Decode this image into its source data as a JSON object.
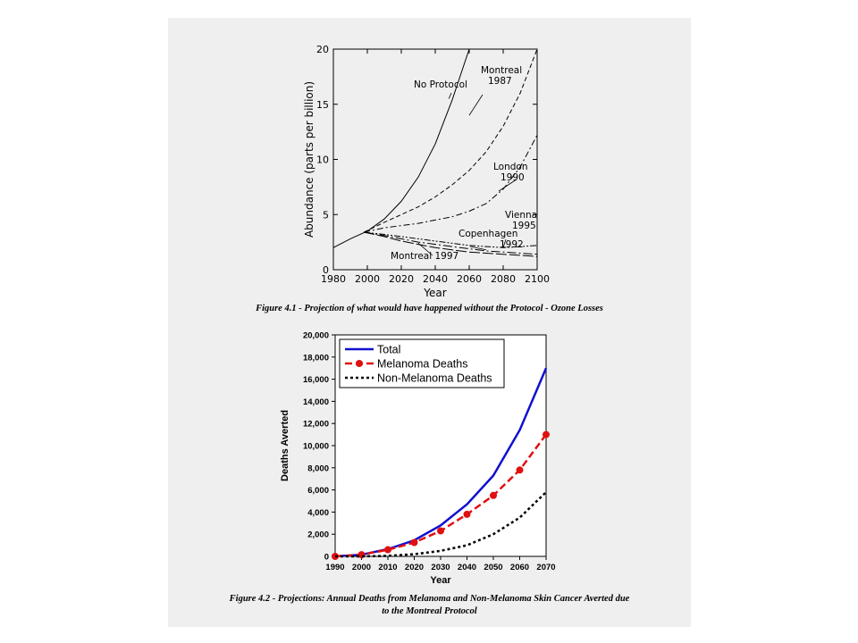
{
  "fig1": {
    "caption": "Figure 4.1 - Projection of what would have happened without the Protocol - Ozone Losses"
  },
  "fig2": {
    "caption_line1": "Figure 4.2 - Projections: Annual Deaths from Melanoma and Non-Melanoma Skin Cancer Averted due",
    "caption_line2": "to the Montreal Protocol"
  },
  "chart_data": [
    {
      "type": "line",
      "xlabel": "Year",
      "ylabel": "Abundance (parts per billion)",
      "xlim": [
        1980,
        2100
      ],
      "ylim": [
        0,
        20
      ],
      "xticks": [
        1980,
        2000,
        2020,
        2040,
        2060,
        2080,
        2100
      ],
      "yticks": [
        0,
        5,
        10,
        15,
        20
      ],
      "grid": false,
      "series": [
        {
          "name": "No Protocol",
          "style": "solid",
          "x": [
            1980,
            1990,
            2000,
            2010,
            2020,
            2030,
            2040,
            2050,
            2060
          ],
          "y": [
            2.0,
            2.8,
            3.5,
            4.6,
            6.2,
            8.4,
            11.4,
            15.4,
            20.0
          ]
        },
        {
          "name": "Montreal 1987",
          "style": "dash",
          "x": [
            1998,
            2010,
            2020,
            2030,
            2040,
            2050,
            2060,
            2070,
            2080,
            2090,
            2100
          ],
          "y": [
            3.4,
            4.3,
            5.0,
            5.7,
            6.6,
            7.7,
            9.0,
            10.7,
            13.0,
            16.0,
            20.0
          ]
        },
        {
          "name": "London 1990",
          "style": "dashdot",
          "x": [
            1998,
            2010,
            2020,
            2030,
            2040,
            2050,
            2060,
            2070,
            2080,
            2090,
            2100
          ],
          "y": [
            3.4,
            3.8,
            4.0,
            4.2,
            4.5,
            4.8,
            5.3,
            6.0,
            7.3,
            9.3,
            12.2
          ]
        },
        {
          "name": "Vienna 1995",
          "style": "dashdotdot",
          "x": [
            1998,
            2010,
            2020,
            2030,
            2040,
            2050,
            2060,
            2070,
            2080,
            2090,
            2100
          ],
          "y": [
            3.4,
            3.2,
            3.0,
            2.8,
            2.6,
            2.4,
            2.2,
            2.1,
            2.0,
            2.1,
            2.2
          ]
        },
        {
          "name": "Copenhagen 1992",
          "style": "longdashdot",
          "x": [
            1998,
            2010,
            2020,
            2030,
            2040,
            2050,
            2060,
            2070,
            2080,
            2090,
            2100
          ],
          "y": [
            3.4,
            3.1,
            2.8,
            2.5,
            2.3,
            2.1,
            1.9,
            1.7,
            1.6,
            1.5,
            1.4
          ]
        },
        {
          "name": "Montreal 1997",
          "style": "longdash",
          "x": [
            1998,
            2010,
            2020,
            2030,
            2040,
            2050,
            2060,
            2070,
            2080,
            2090,
            2100
          ],
          "y": [
            3.4,
            3.0,
            2.6,
            2.3,
            2.0,
            1.8,
            1.6,
            1.5,
            1.4,
            1.3,
            1.2
          ]
        }
      ]
    },
    {
      "type": "line",
      "xlabel": "Year",
      "ylabel": "Deaths Averted",
      "xlim": [
        1990,
        2070
      ],
      "ylim": [
        0,
        20000
      ],
      "xticks": [
        1990,
        2000,
        2010,
        2020,
        2030,
        2040,
        2050,
        2060,
        2070
      ],
      "yticks": [
        0,
        2000,
        4000,
        6000,
        8000,
        10000,
        12000,
        14000,
        16000,
        18000,
        20000
      ],
      "ytick_labels": [
        "0",
        "2,000",
        "4,000",
        "6,000",
        "8,000",
        "10,000",
        "12,000",
        "14,000",
        "16,000",
        "18,000",
        "20,000"
      ],
      "grid": false,
      "legend": "top-left",
      "series": [
        {
          "name": "Total",
          "color": "#1010d0",
          "x": [
            1990,
            2000,
            2010,
            2020,
            2030,
            2040,
            2050,
            2060,
            2070
          ],
          "y": [
            0,
            150,
            650,
            1450,
            2800,
            4700,
            7300,
            11400,
            17000
          ]
        },
        {
          "name": "Melanoma Deaths",
          "color": "#e01010",
          "x": [
            1990,
            2000,
            2010,
            2020,
            2030,
            2040,
            2050,
            2060,
            2070
          ],
          "y": [
            0,
            150,
            600,
            1250,
            2300,
            3800,
            5500,
            7800,
            11000
          ]
        },
        {
          "name": "Non-Melanoma Deaths",
          "color": "#000000",
          "x": [
            1990,
            2000,
            2010,
            2020,
            2030,
            2040,
            2050,
            2060,
            2070
          ],
          "y": [
            0,
            0,
            50,
            200,
            500,
            1000,
            2000,
            3500,
            5800
          ]
        }
      ]
    }
  ]
}
